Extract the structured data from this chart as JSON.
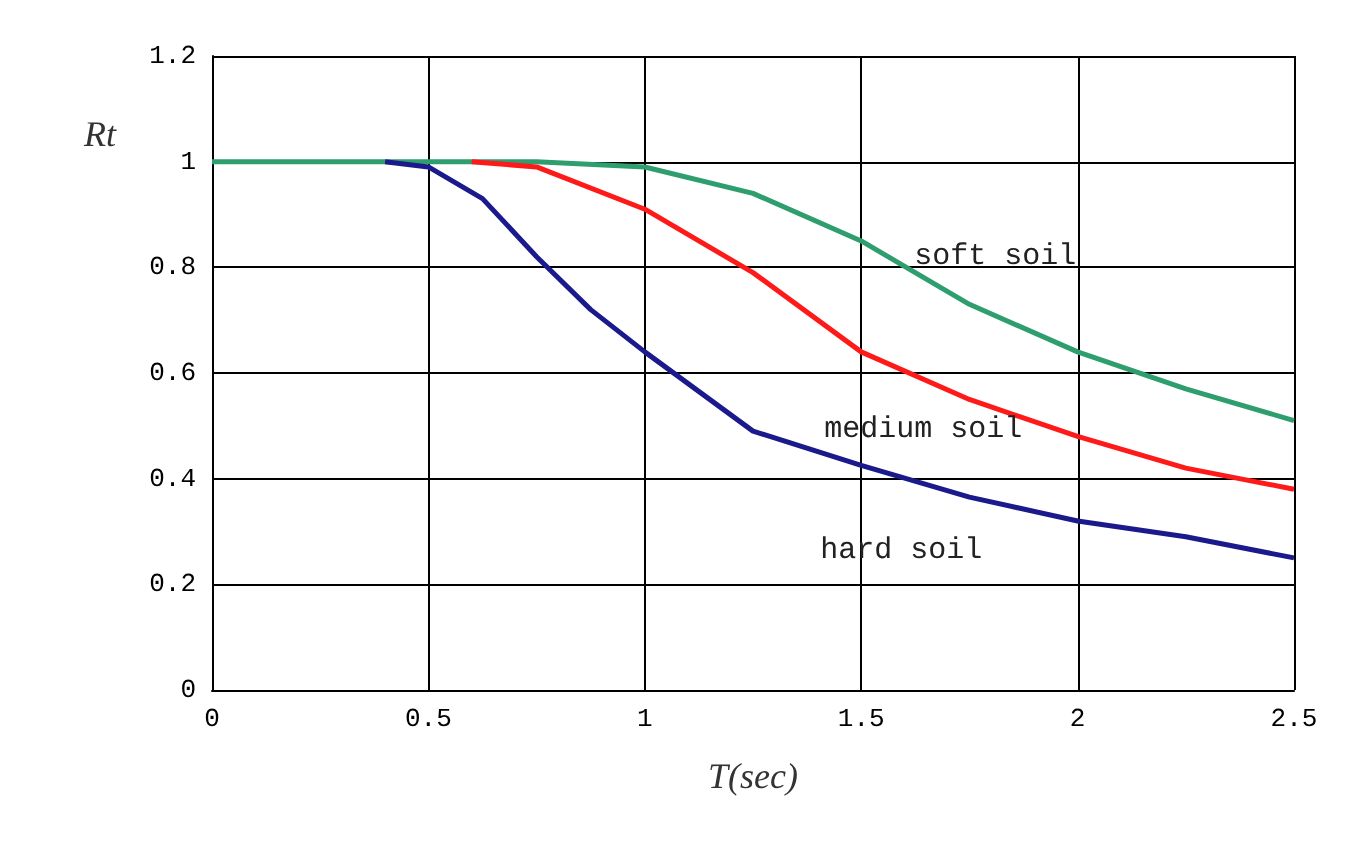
{
  "chart_data": {
    "type": "line",
    "ylabel": "Rt",
    "xlabel": "T(sec)",
    "xlim": [
      0,
      2.5
    ],
    "xticks": [
      0,
      0.5,
      1,
      1.5,
      2,
      2.5
    ],
    "ylim": [
      0,
      1.2
    ],
    "yticks": [
      0,
      0.2,
      0.4,
      0.6,
      0.8,
      1,
      1.2
    ],
    "grid": true,
    "marker": "none",
    "line_style": "solid",
    "series": [
      {
        "name": "soft soil",
        "color": "#2e9e6e",
        "x": [
          0,
          0.5,
          0.75,
          1,
          1.25,
          1.5,
          1.75,
          2,
          2.25,
          2.5
        ],
        "values": [
          1,
          1,
          1,
          0.99,
          0.94,
          0.85,
          0.73,
          0.64,
          0.57,
          0.51
        ]
      },
      {
        "name": "medium soil",
        "color": "#ff1a1a",
        "x": [
          0.6,
          0.75,
          1,
          1.25,
          1.5,
          1.75,
          2,
          2.25,
          2.5
        ],
        "values": [
          1,
          0.99,
          0.91,
          0.79,
          0.64,
          0.55,
          0.48,
          0.42,
          0.38
        ]
      },
      {
        "name": "hard soil",
        "color": "#1a1a8c",
        "x": [
          0.4,
          0.5,
          0.625,
          0.75,
          0.875,
          1,
          1.25,
          1.5,
          1.75,
          2,
          2.25,
          2.5
        ],
        "values": [
          1,
          0.99,
          0.93,
          0.82,
          0.72,
          0.64,
          0.49,
          0.425,
          0.365,
          0.32,
          0.29,
          0.25
        ]
      }
    ]
  }
}
